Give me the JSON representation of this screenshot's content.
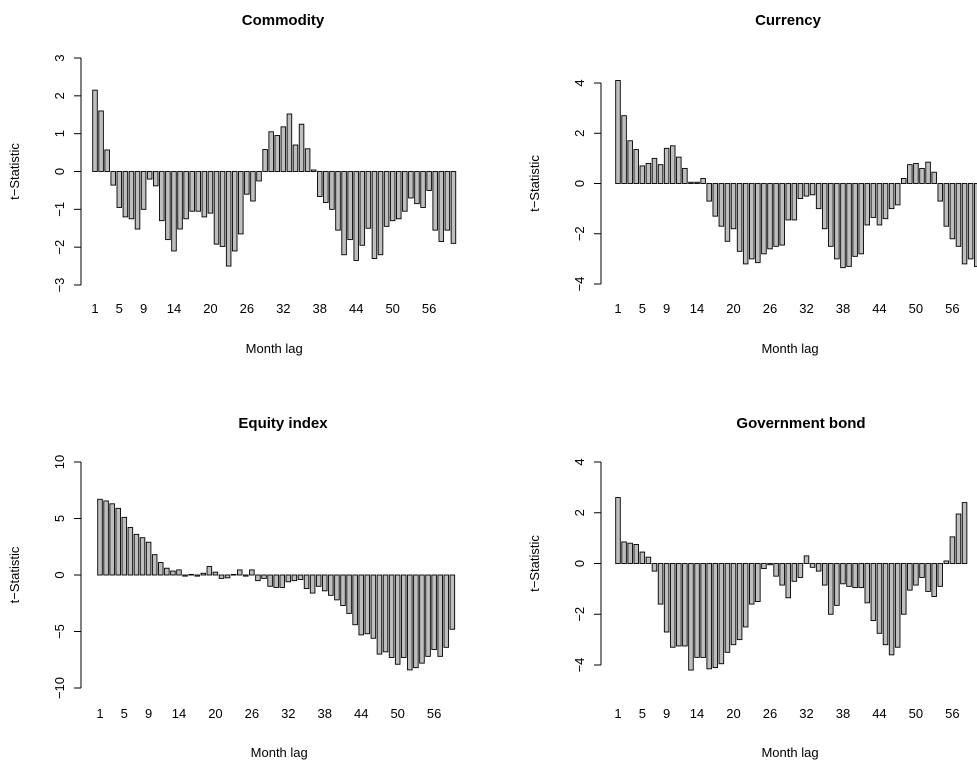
{
  "chart_data": [
    {
      "type": "bar",
      "title": "Commodity",
      "xlabel": "Month lag",
      "ylabel": "t−Statistic",
      "ylim": [
        -3,
        3
      ],
      "yticks": [
        -3,
        -2,
        -1,
        0,
        1,
        2,
        3
      ],
      "ytick_labels": [
        "−3",
        "−2",
        "−1",
        "0",
        "1",
        "2",
        "3"
      ],
      "xtick_labels": [
        "1",
        "5",
        "9",
        "14",
        "20",
        "26",
        "32",
        "38",
        "44",
        "50",
        "56"
      ],
      "categories": [
        1,
        2,
        3,
        4,
        5,
        6,
        7,
        8,
        9,
        10,
        11,
        12,
        13,
        14,
        15,
        16,
        17,
        18,
        19,
        20,
        21,
        22,
        23,
        24,
        25,
        26,
        27,
        28,
        29,
        30,
        31,
        32,
        33,
        34,
        35,
        36,
        37,
        38,
        39,
        40,
        41,
        42,
        43,
        44,
        45,
        46,
        47,
        48,
        49,
        50,
        51,
        52,
        53,
        54,
        55,
        56,
        57,
        58,
        59,
        60
      ],
      "values": [
        2.15,
        1.6,
        0.57,
        -0.36,
        -0.95,
        -1.2,
        -1.25,
        -1.52,
        -1.0,
        -0.2,
        -0.38,
        -1.3,
        -1.8,
        -2.1,
        -1.52,
        -1.25,
        -1.05,
        -1.05,
        -1.2,
        -1.1,
        -1.92,
        -1.98,
        -2.5,
        -2.1,
        -1.65,
        -0.6,
        -0.78,
        -0.25,
        0.58,
        1.05,
        0.95,
        1.18,
        1.52,
        0.7,
        1.25,
        0.6,
        0.04,
        -0.66,
        -0.82,
        -1.0,
        -1.55,
        -2.2,
        -1.8,
        -2.35,
        -1.95,
        -1.5,
        -2.3,
        -2.2,
        -1.45,
        -1.3,
        -1.25,
        -1.05,
        -0.7,
        -0.85,
        -0.95,
        -0.5,
        -1.55,
        -1.85,
        -1.55,
        -1.9
      ]
    },
    {
      "type": "bar",
      "title": "Currency",
      "xlabel": "Month lag",
      "ylabel": "t−Statistic",
      "ylim": [
        -4,
        4
      ],
      "yticks": [
        -4,
        -2,
        0,
        2,
        4
      ],
      "ytick_labels": [
        "−4",
        "−2",
        "0",
        "2",
        "4"
      ],
      "xtick_labels": [
        "1",
        "5",
        "9",
        "14",
        "20",
        "26",
        "32",
        "38",
        "44",
        "50",
        "56"
      ],
      "categories": [
        1,
        2,
        3,
        4,
        5,
        6,
        7,
        8,
        9,
        10,
        11,
        12,
        13,
        14,
        15,
        16,
        17,
        18,
        19,
        20,
        21,
        22,
        23,
        24,
        25,
        26,
        27,
        28,
        29,
        30,
        31,
        32,
        33,
        34,
        35,
        36,
        37,
        38,
        39,
        40,
        41,
        42,
        43,
        44,
        45,
        46,
        47,
        48,
        49,
        50,
        51,
        52,
        53,
        54,
        55,
        56,
        57,
        58,
        59,
        60
      ],
      "values": [
        4.1,
        2.7,
        1.7,
        1.35,
        0.7,
        0.8,
        1.0,
        0.75,
        1.4,
        1.5,
        1.05,
        0.6,
        0.05,
        0.05,
        0.2,
        -0.7,
        -1.3,
        -1.7,
        -2.3,
        -1.8,
        -2.7,
        -3.2,
        -3.0,
        -3.15,
        -2.8,
        -2.6,
        -2.5,
        -2.45,
        -1.45,
        -1.45,
        -0.6,
        -0.5,
        -0.45,
        -1.0,
        -1.8,
        -2.5,
        -3.0,
        -3.35,
        -3.3,
        -2.9,
        -2.8,
        -1.65,
        -1.35,
        -1.65,
        -1.4,
        -1.0,
        -0.85,
        0.2,
        0.75,
        0.8,
        0.6,
        0.85,
        0.45,
        -0.7,
        -1.7,
        -2.2,
        -2.5,
        -3.2,
        -3.0,
        -3.3
      ]
    },
    {
      "type": "bar",
      "title": "Equity index",
      "xlabel": "Month lag",
      "ylabel": "t−Statistic",
      "ylim": [
        -10,
        10
      ],
      "yticks": [
        -10,
        -5,
        0,
        5,
        10
      ],
      "ytick_labels": [
        "−10",
        "−5",
        "0",
        "5",
        "10"
      ],
      "xtick_labels": [
        "1",
        "5",
        "9",
        "14",
        "20",
        "26",
        "32",
        "38",
        "44",
        "50",
        "56"
      ],
      "categories": [
        1,
        2,
        3,
        4,
        5,
        6,
        7,
        8,
        9,
        10,
        11,
        12,
        13,
        14,
        15,
        16,
        17,
        18,
        19,
        20,
        21,
        22,
        23,
        24,
        25,
        26,
        27,
        28,
        29,
        30,
        31,
        32,
        33,
        34,
        35,
        36,
        37,
        38,
        39,
        40,
        41,
        42,
        43,
        44,
        45,
        46,
        47,
        48,
        49,
        50,
        51,
        52,
        53,
        54,
        55,
        56,
        57,
        58,
        59,
        60
      ],
      "values": [
        6.7,
        6.55,
        6.3,
        5.9,
        5.1,
        4.2,
        3.6,
        3.3,
        2.9,
        1.8,
        1.1,
        0.6,
        0.35,
        0.45,
        -0.1,
        0.05,
        -0.1,
        0.15,
        0.75,
        0.25,
        -0.3,
        -0.25,
        0.05,
        0.45,
        -0.1,
        0.45,
        -0.5,
        -0.3,
        -1.0,
        -1.1,
        -1.1,
        -0.6,
        -0.5,
        -0.4,
        -1.2,
        -1.6,
        -1.0,
        -1.4,
        -1.8,
        -2.2,
        -2.7,
        -3.4,
        -4.4,
        -5.3,
        -5.2,
        -5.6,
        -7.0,
        -6.8,
        -7.3,
        -7.9,
        -7.3,
        -8.4,
        -8.2,
        -7.8,
        -7.2,
        -6.6,
        -7.2,
        -6.4,
        -4.8,
        0
      ]
    },
    {
      "type": "bar",
      "title": "Government bond",
      "xlabel": "Month lag",
      "ylabel": "t−Statistic",
      "ylim": [
        -4,
        4
      ],
      "yticks": [
        -4,
        -2,
        0,
        2,
        4
      ],
      "ytick_labels": [
        "−4",
        "−2",
        "0",
        "2",
        "4"
      ],
      "xtick_labels": [
        "1",
        "5",
        "9",
        "14",
        "20",
        "26",
        "32",
        "38",
        "44",
        "50",
        "56"
      ],
      "categories": [
        1,
        2,
        3,
        4,
        5,
        6,
        7,
        8,
        9,
        10,
        11,
        12,
        13,
        14,
        15,
        16,
        17,
        18,
        19,
        20,
        21,
        22,
        23,
        24,
        25,
        26,
        27,
        28,
        29,
        30,
        31,
        32,
        33,
        34,
        35,
        36,
        37,
        38,
        39,
        40,
        41,
        42,
        43,
        44,
        45,
        46,
        47,
        48,
        49,
        50,
        51,
        52,
        53,
        54,
        55,
        56,
        57,
        58,
        59,
        60
      ],
      "values": [
        2.6,
        0.85,
        0.8,
        0.75,
        0.45,
        0.25,
        -0.3,
        -1.6,
        -2.7,
        -3.3,
        -3.25,
        -3.25,
        -4.2,
        -3.7,
        -3.7,
        -4.15,
        -4.1,
        -3.95,
        -3.5,
        -3.2,
        -3.0,
        -2.5,
        -1.6,
        -1.5,
        -0.2,
        -0.05,
        -0.5,
        -0.85,
        -1.35,
        -0.7,
        -0.55,
        0.3,
        -0.15,
        -0.3,
        -0.85,
        -2.0,
        -1.65,
        -0.8,
        -0.9,
        -0.95,
        -0.95,
        -1.55,
        -2.25,
        -2.75,
        -3.2,
        -3.6,
        -3.3,
        -2.0,
        -1.05,
        -0.85,
        -0.55,
        -1.1,
        -1.3,
        -0.9,
        0.1,
        1.05,
        1.95,
        2.4,
        0,
        0
      ]
    }
  ]
}
